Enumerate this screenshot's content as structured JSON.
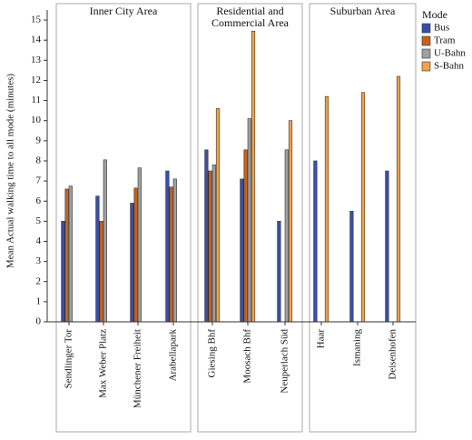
{
  "chart_data": {
    "type": "grouped-bar",
    "y_label": "Mean Actual walking time to all mode (minutes)",
    "legend_title": "Mode",
    "groups": [
      {
        "name": "Inner City Area",
        "categories": [
          "Sendlinger Tor",
          "Max Weber Platz",
          "Münchener Freiheit",
          "Arabellapark"
        ]
      },
      {
        "name": "Residential and Commercial Area",
        "categories": [
          "Giesing Bhf",
          "Moosach Bhf",
          "Neuperlach Süd"
        ]
      },
      {
        "name": "Suburban Area",
        "categories": [
          "Haar",
          "Ismaning",
          "Deisenhofen"
        ]
      }
    ],
    "series": [
      {
        "name": "Bus",
        "color": "#3b4ea6",
        "values": [
          5.0,
          6.25,
          5.9,
          7.5,
          8.55,
          7.1,
          5.0,
          8.0,
          5.5,
          7.5
        ]
      },
      {
        "name": "Tram",
        "color": "#c4621c",
        "values": [
          6.6,
          5.0,
          6.65,
          6.7,
          7.5,
          8.55,
          null,
          null,
          null,
          null
        ]
      },
      {
        "name": "U-Bahn",
        "color": "#a0a0a0",
        "values": [
          6.75,
          8.05,
          7.65,
          7.1,
          7.8,
          10.1,
          8.55,
          null,
          null,
          null
        ]
      },
      {
        "name": "S-Bahn",
        "color": "#f0a348",
        "values": [
          null,
          null,
          null,
          null,
          10.6,
          14.45,
          10.0,
          11.2,
          11.4,
          12.2
        ]
      }
    ],
    "ylim": [
      0,
      15.5
    ],
    "yticks": [
      0,
      1,
      2,
      3,
      4,
      5,
      6,
      7,
      8,
      9,
      10,
      11,
      12,
      13,
      14,
      15
    ]
  }
}
